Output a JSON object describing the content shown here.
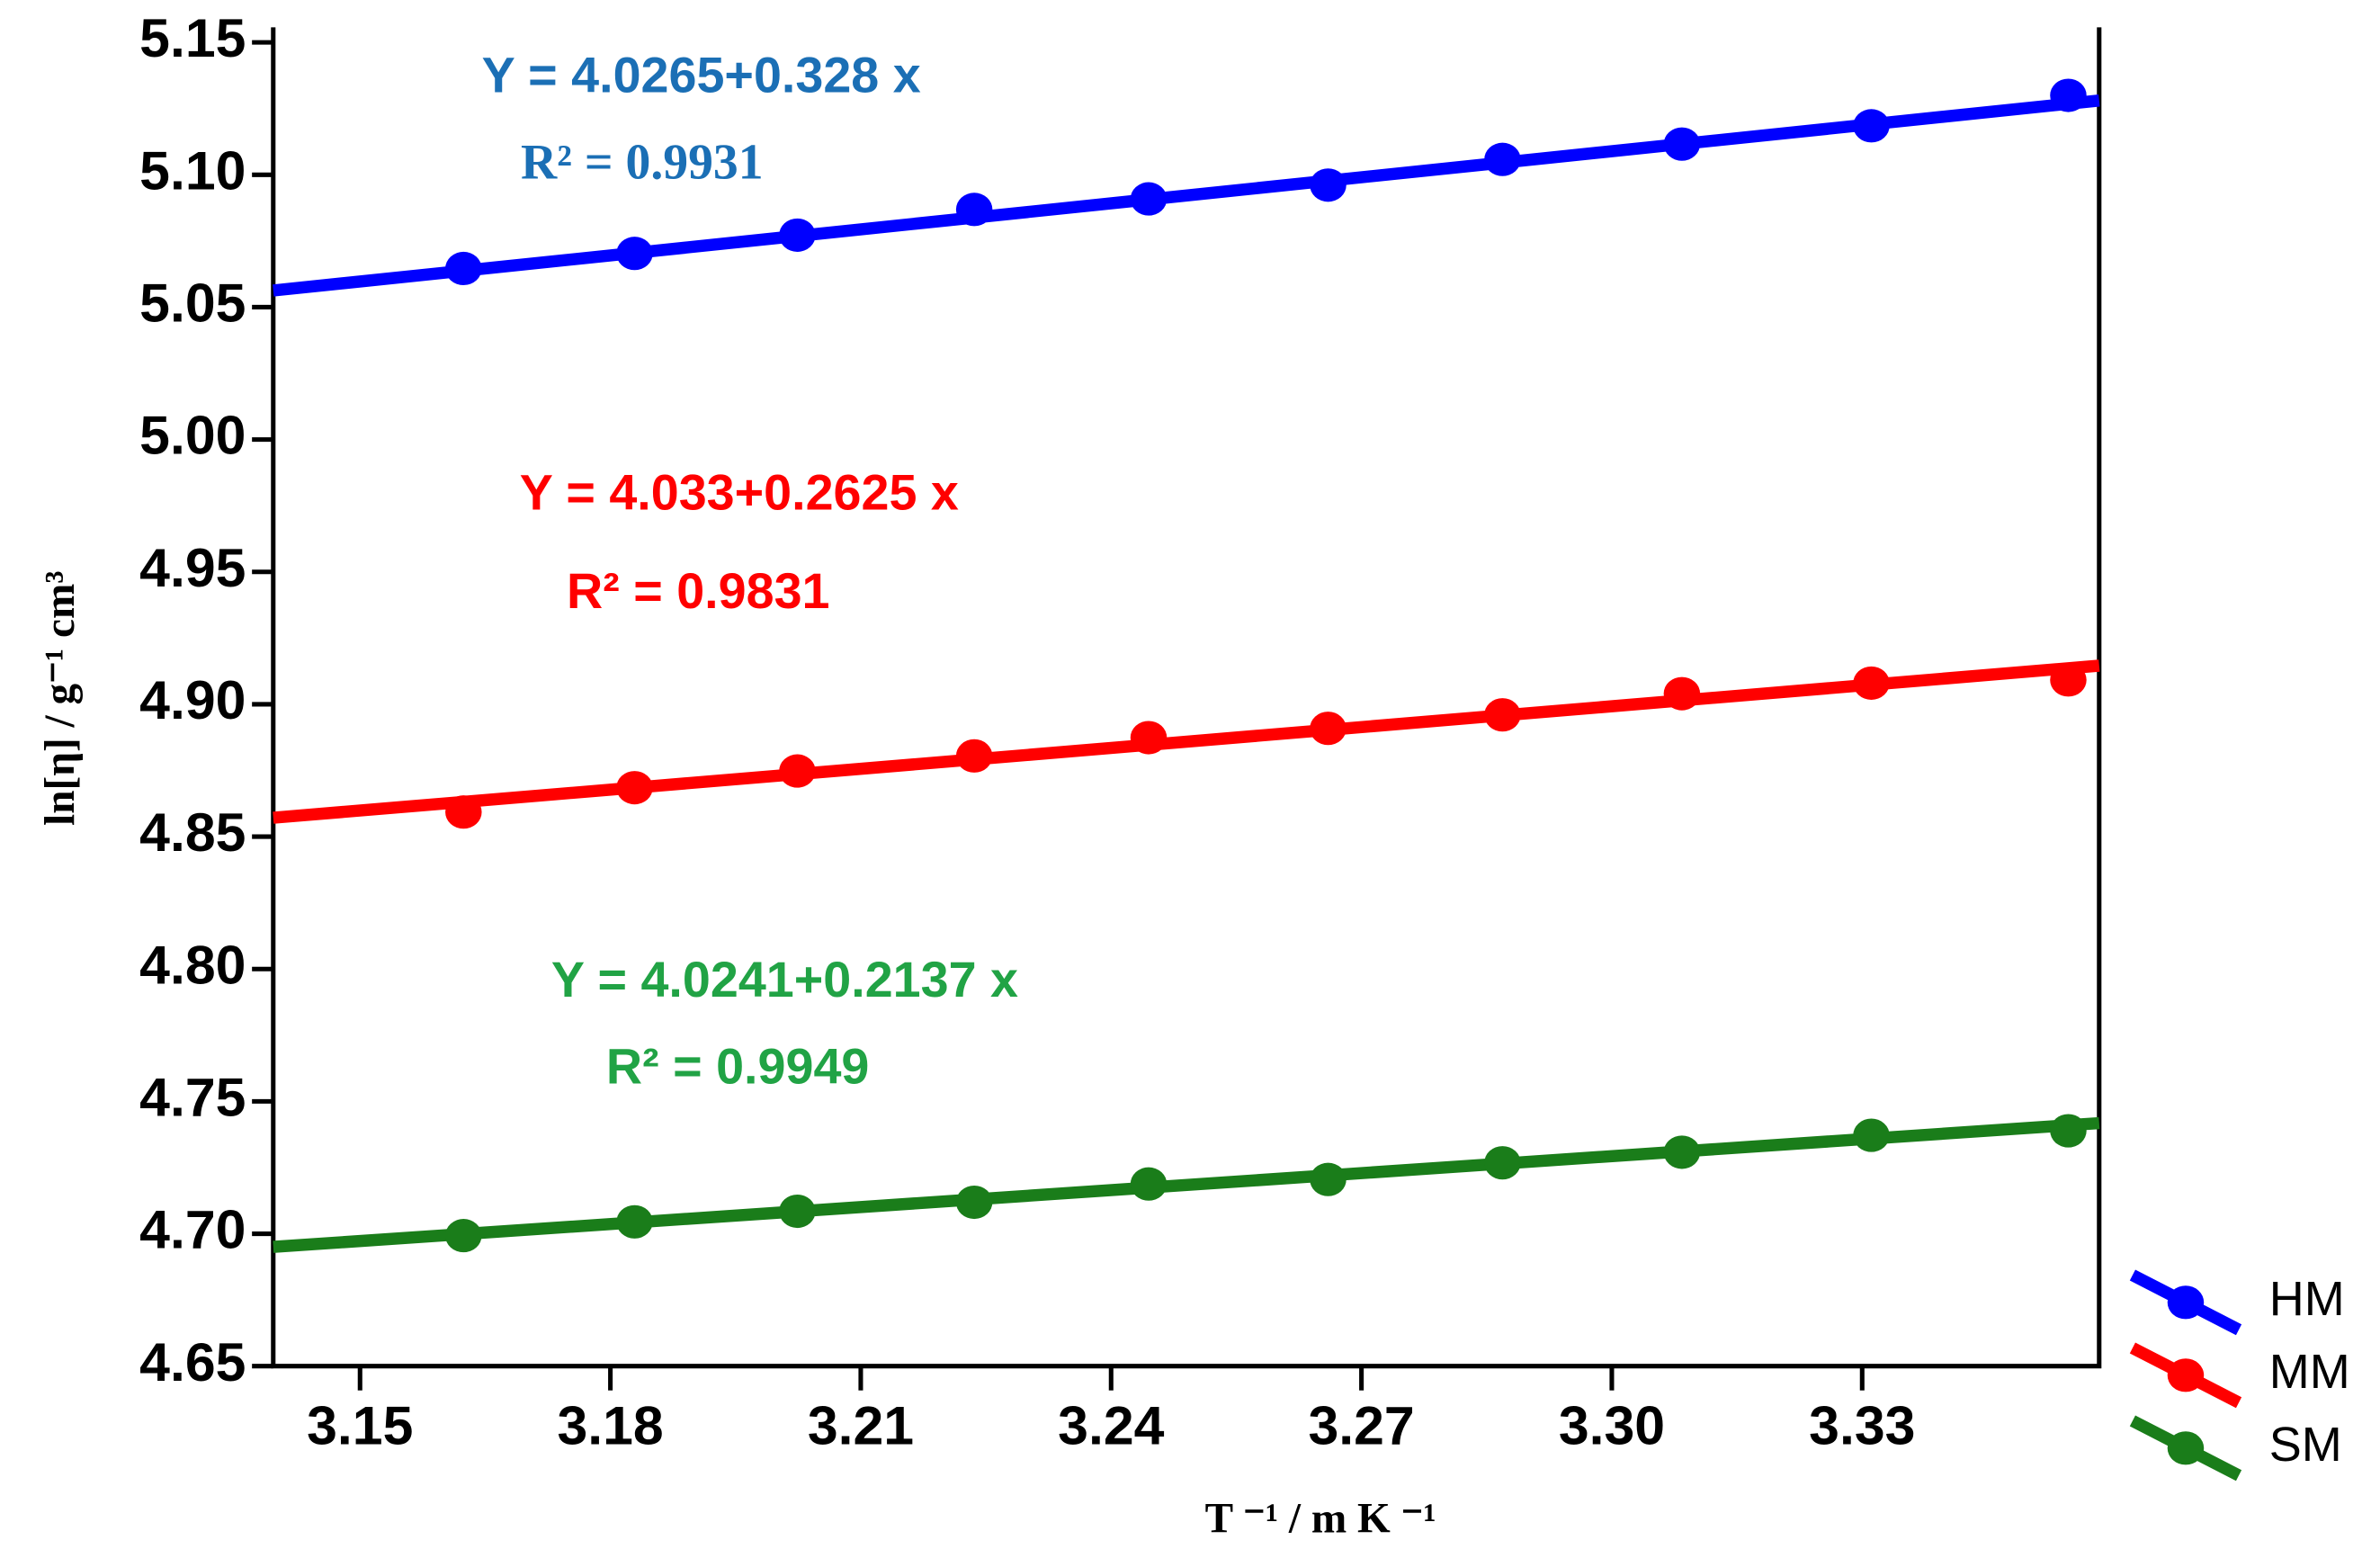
{
  "chart_data": {
    "type": "scatter",
    "x_label": "T ⁻¹ / m K ⁻¹",
    "y_label": "ln[η] / g⁻¹ cm³",
    "x": [
      3.1624,
      3.1829,
      3.2024,
      3.2236,
      3.2445,
      3.266,
      3.2869,
      3.3084,
      3.3311,
      3.3547
    ],
    "series": [
      {
        "name": "HM",
        "color": "#0000ff",
        "values": [
          5.0646,
          5.0703,
          5.0772,
          5.0869,
          5.0909,
          5.0961,
          5.1058,
          5.1116,
          5.1185,
          5.13
        ],
        "fit": {
          "intercept": 4.0265,
          "slope": 0.328
        },
        "equation": "Y = 4.0265+0.328 x",
        "r2": "R² = 0.9931",
        "annotation_color": "#1b6fb5"
      },
      {
        "name": "MM",
        "color": "#ff0000",
        "values": [
          4.8593,
          4.8685,
          4.8748,
          4.8805,
          4.8874,
          4.8909,
          4.896,
          4.904,
          4.908,
          4.9092
        ],
        "fit": {
          "intercept": 4.033,
          "slope": 0.2625
        },
        "equation": "Y = 4.033+0.2625 x",
        "r2": "R² = 0.9831",
        "annotation_color": "#ff0000"
      },
      {
        "name": "SM",
        "color": "#1a7d1a",
        "values": [
          4.6993,
          4.7045,
          4.7085,
          4.7119,
          4.7188,
          4.7205,
          4.7268,
          4.7308,
          4.7372,
          4.7389
        ],
        "fit": {
          "intercept": 4.0241,
          "slope": 0.2137
        },
        "equation": "Y = 4.0241+0.2137 x",
        "r2": "R² = 0.9949",
        "annotation_color": "#21a345"
      }
    ],
    "xlim": [
      3.1396,
      3.3584
    ],
    "ylim": [
      4.65,
      5.1557
    ],
    "xticks": [
      3.15,
      3.18,
      3.21,
      3.24,
      3.27,
      {
        "value": 3.3,
        "label": "3.30"
      },
      3.33
    ],
    "yticks": [
      4.65,
      {
        "value": 4.7,
        "label": "4.70"
      },
      4.75,
      {
        "value": 4.8,
        "label": "4.80"
      },
      4.85,
      {
        "value": 4.9,
        "label": "4.90"
      },
      4.95,
      {
        "value": 5,
        "label": "5.00"
      },
      5.05,
      {
        "value": 5.1,
        "label": "5.10"
      },
      5.15
    ],
    "legend": "bottom-right-outside",
    "grid": false
  }
}
